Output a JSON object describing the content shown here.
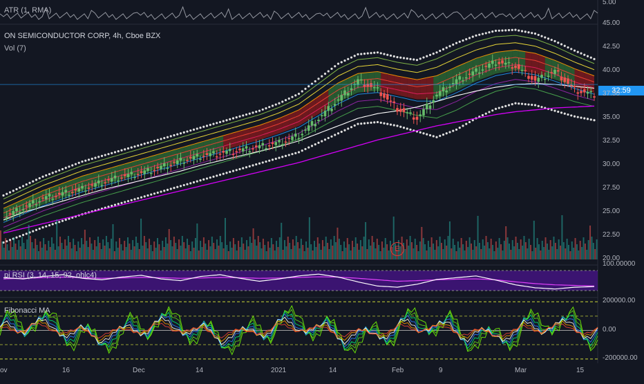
{
  "header": {
    "atr_label": "ATR (1, RMA)",
    "symbol_title": "ON SEMICONDUCTOR CORP, 4h, Cboe BZX",
    "vol_label": "Vol (7)",
    "rsi_label": "pi RSI (3, 14, 15, 92, ohlc4)",
    "fib_label": "Fibonacci MA"
  },
  "last_price_tag": "32:59",
  "earnings_marker": "E",
  "colors": {
    "background": "#131722",
    "up": "#26a69a",
    "down": "#ef5350",
    "rsi_band": "#6a1b9a",
    "price_tag": "#2196f3"
  },
  "chart_data": [
    {
      "type": "candlestick",
      "title": "ON SEMICONDUCTOR CORP, 4h, Cboe BZX",
      "x_ticks": [
        "ov",
        "16",
        "Dec",
        "14",
        "2021",
        "14",
        "Feb",
        "9",
        "Mar",
        "15"
      ],
      "y_ticks": [
        "45.00",
        "42.50",
        "40.00",
        "37.50",
        "35.00",
        "32.50",
        "30.00",
        "27.50",
        "25.00",
        "22.50",
        "20.00"
      ],
      "ylim": [
        20.0,
        45.0
      ],
      "close_path": [
        24.5,
        25.5,
        26.5,
        27.0,
        27.5,
        28.2,
        28.8,
        29.2,
        29.8,
        30.5,
        31.0,
        31.3,
        31.6,
        32.0,
        32.4,
        33.2,
        35.0,
        37.0,
        39.0,
        38.0,
        36.0,
        35.0,
        37.5,
        39.0,
        40.0,
        41.0,
        40.5,
        39.0,
        40.0,
        38.0,
        37.5
      ],
      "ma_white": [
        24.2,
        25.0,
        25.6,
        26.2,
        26.8,
        27.4,
        27.9,
        28.4,
        28.9,
        29.4,
        30.0,
        30.5,
        31.0,
        31.5,
        32.0,
        32.6,
        33.4,
        34.2,
        35.0,
        35.5,
        35.8,
        36.2,
        36.8,
        37.4,
        37.9,
        38.3,
        38.6,
        38.7,
        38.6,
        38.4,
        38.2
      ],
      "ma_purple": [
        22.8,
        23.3,
        23.8,
        24.3,
        24.8,
        25.3,
        25.8,
        26.3,
        26.8,
        27.3,
        27.8,
        28.3,
        28.8,
        29.3,
        29.8,
        30.3,
        30.9,
        31.5,
        32.1,
        32.7,
        33.2,
        33.7,
        34.2,
        34.6,
        35.0,
        35.4,
        35.7,
        35.9,
        36.1,
        36.2,
        36.3
      ],
      "upper_band": [
        26.8,
        27.8,
        28.8,
        29.6,
        30.4,
        31.0,
        31.6,
        32.2,
        32.8,
        33.4,
        34.0,
        34.6,
        35.2,
        35.8,
        36.6,
        37.6,
        39.2,
        40.8,
        41.8,
        42.0,
        41.5,
        41.2,
        42.0,
        43.0,
        43.8,
        44.3,
        44.4,
        44.0,
        43.2,
        42.2,
        41.3
      ],
      "lower_band": [
        21.8,
        22.6,
        23.4,
        24.1,
        24.8,
        25.4,
        26.0,
        26.6,
        27.2,
        27.8,
        28.4,
        29.0,
        29.6,
        30.2,
        30.8,
        31.4,
        32.4,
        33.4,
        34.4,
        34.6,
        34.2,
        33.6,
        33.0,
        33.8,
        35.0,
        36.0,
        36.6,
        36.4,
        35.8,
        35.2,
        34.8
      ],
      "last_price": 38.59
    },
    {
      "type": "bar",
      "title": "Vol (7)",
      "pane": "volume"
    },
    {
      "type": "line",
      "title": "pi RSI (3, 14, 15, 92, ohlc4)",
      "y_ticks": [
        "100.00000"
      ],
      "white_line": [
        62,
        58,
        66,
        72,
        60,
        55,
        64,
        70,
        58,
        52,
        66,
        72,
        60,
        50,
        58,
        68,
        74,
        64,
        48,
        34,
        30,
        40,
        56,
        62,
        68,
        54,
        38,
        28,
        24,
        30,
        32
      ],
      "purple_line": [
        58,
        60,
        62,
        64,
        62,
        60,
        61,
        63,
        62,
        60,
        61,
        63,
        62,
        60,
        61,
        63,
        65,
        64,
        60,
        55,
        50,
        52,
        55,
        57,
        58,
        55,
        48,
        42,
        38,
        36,
        34
      ]
    },
    {
      "type": "line",
      "title": "Fibonacci MA",
      "y_ticks": [
        "200000.00",
        "0.00",
        "-200000.00"
      ],
      "ylim": [
        -220000,
        220000
      ]
    }
  ]
}
